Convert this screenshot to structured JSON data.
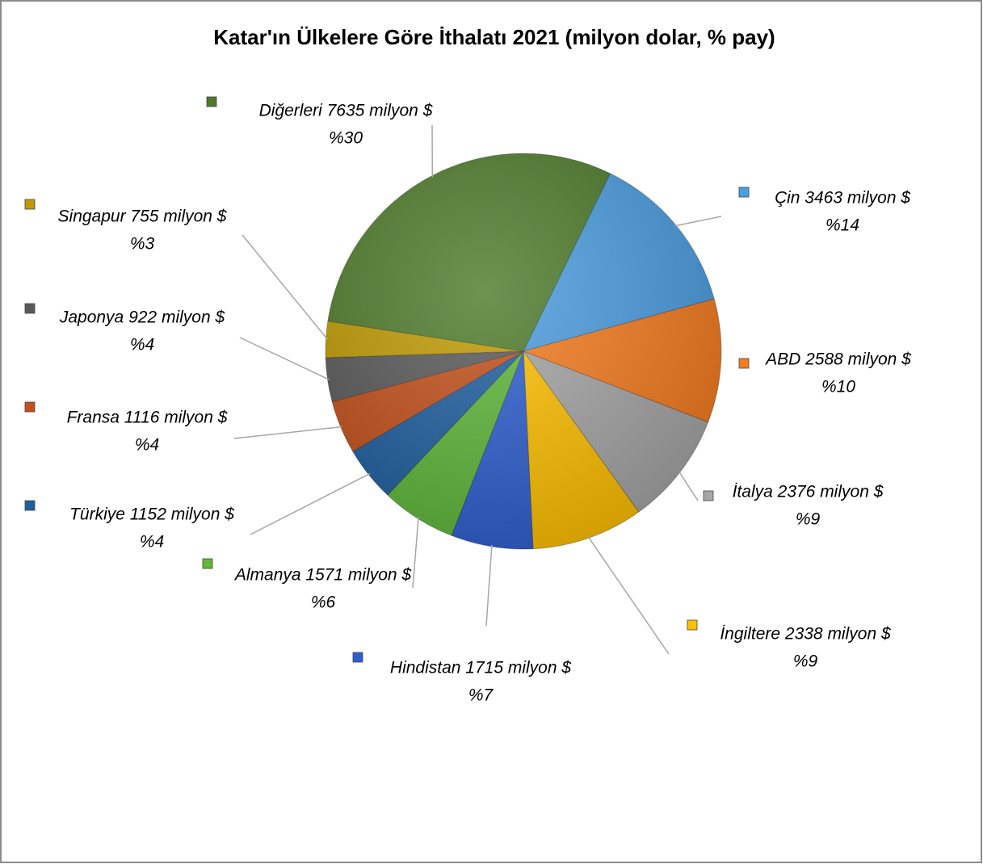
{
  "chart_data": {
    "type": "pie",
    "title": "Katar'ın Ülkelere Göre İthalatı 2021 (milyon dolar, % pay)",
    "values": [
      3463,
      2588,
      2376,
      2338,
      1715,
      1571,
      1152,
      1116,
      922,
      755,
      7635
    ],
    "value_labels": [
      "Çin 3463 milyon $",
      "ABD 2588 milyon $",
      "İtalya 2376 milyon $",
      "İngiltere 2338 milyon $",
      "Hindistan 1715 milyon $",
      "Almanya 1571 milyon $",
      "Türkiye 1152 milyon $",
      "Fransa 1116 milyon $",
      "Japonya 922 milyon $",
      "Singapur 755 milyon $",
      "Diğerleri 7635 milyon $"
    ],
    "percentages": [
      14,
      10,
      9,
      9,
      7,
      6,
      4,
      4,
      4,
      3,
      30
    ],
    "percentage_labels": [
      "%14",
      "%10",
      "%9",
      "%9",
      "%7",
      "%6",
      "%4",
      "%4",
      "%4",
      "%3",
      "%30"
    ],
    "colors": [
      "#4a9de0",
      "#f57c1f",
      "#a6a6a6",
      "#ffc000",
      "#2f5fcf",
      "#5fb83a",
      "#1f5fa0",
      "#c4501a",
      "#595959",
      "#c09a00",
      "#4e7a2a"
    ]
  }
}
